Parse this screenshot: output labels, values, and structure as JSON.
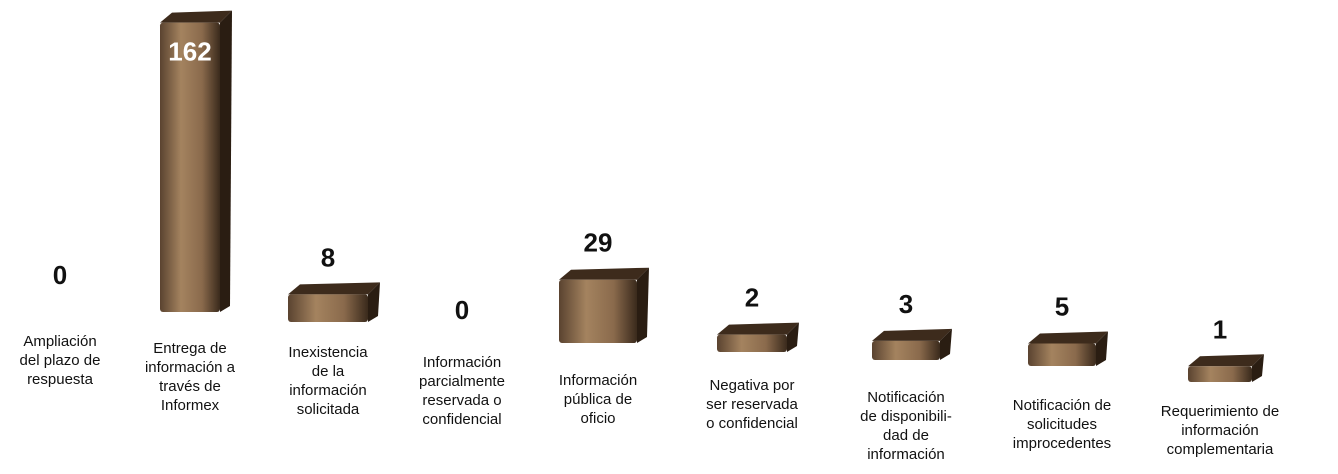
{
  "chart_data": {
    "type": "bar3d",
    "categories": [
      "Ampliación\ndel plazo de\nrespuesta",
      "Entrega de\ninformación a\ntravés de\nInformex",
      "Inexistencia\nde la\ninformación\nsolicitada",
      "Información\nparcialmente\nreservada o\nconfidencial",
      "Información\npública de\noficio",
      "Negativa por\nser reservada\no confidencial",
      "Notificación\nde disponibili-\ndad de\ninformación",
      "Notificación de\nsolicitudes\nimprocedentes",
      "Requerimiento de\ninformación\ncomplementaria"
    ],
    "values": [
      0,
      162,
      8,
      0,
      29,
      2,
      3,
      5,
      1
    ],
    "color": "#8a6a4c"
  }
}
